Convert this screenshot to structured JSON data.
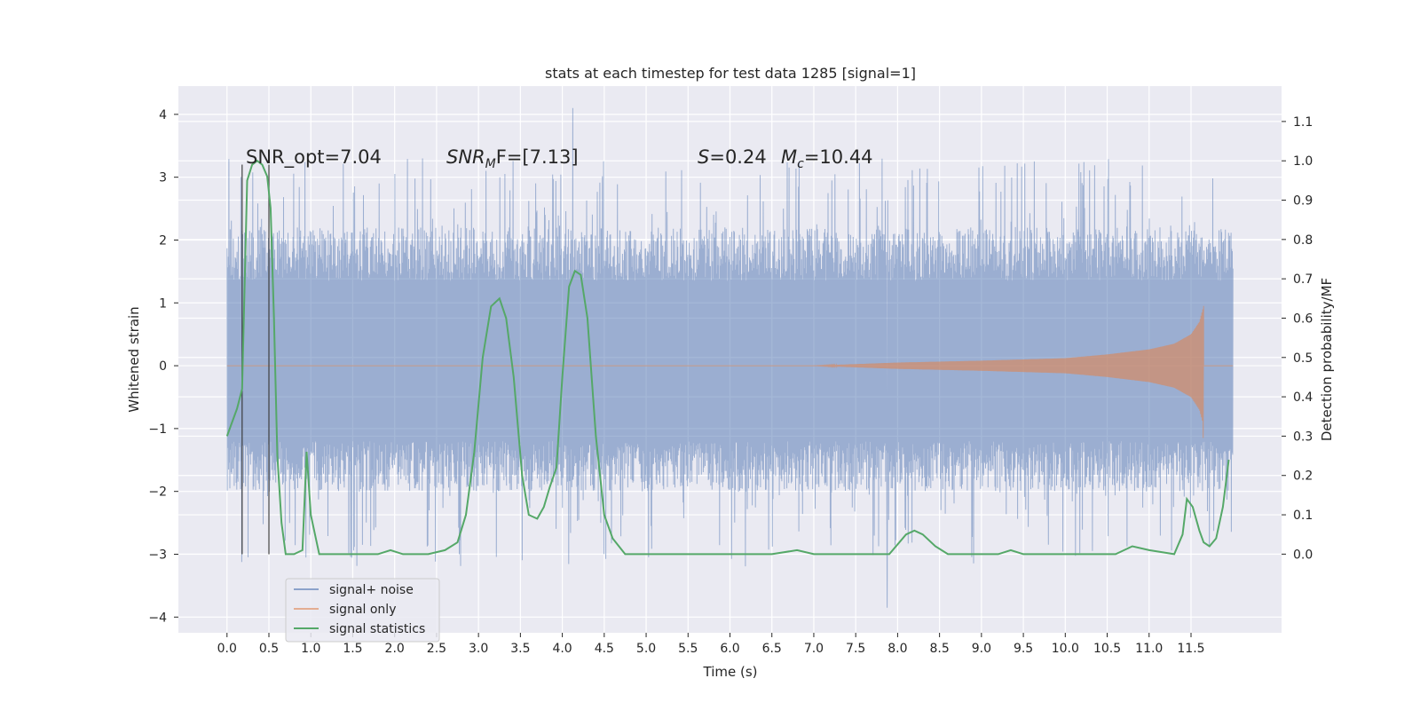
{
  "chart_data": {
    "type": "line",
    "title": "stats at each timestep for test data 1285 [signal=1]",
    "xlabel": "Time (s)",
    "ylabel": "Whitened strain",
    "ylabel_right": "Detection probability/MF",
    "xlim": [
      -0.58,
      12.58
    ],
    "ylim": [
      -4.25,
      4.45
    ],
    "ylim_right": [
      -0.2,
      1.19
    ],
    "x_ticks": [
      0.0,
      0.5,
      1.0,
      1.5,
      2.0,
      2.5,
      3.0,
      3.5,
      4.0,
      4.5,
      5.0,
      5.5,
      6.0,
      6.5,
      7.0,
      7.5,
      8.0,
      8.5,
      9.0,
      9.5,
      10.0,
      10.5,
      11.0,
      11.5
    ],
    "x_tick_labels": [
      "0.0",
      "0.5",
      "1.0",
      "1.5",
      "2.0",
      "2.5",
      "3.0",
      "3.5",
      "4.0",
      "4.5",
      "5.0",
      "5.5",
      "6.0",
      "6.5",
      "7.0",
      "7.5",
      "8.0",
      "8.5",
      "9.0",
      "9.5",
      "10.0",
      "10.5",
      "11.0",
      "11.5"
    ],
    "y_ticks": [
      4,
      3,
      2,
      1,
      0,
      -1,
      -2,
      -3,
      -4
    ],
    "y_tick_labels": [
      "4",
      "3",
      "2",
      "1",
      "0",
      "−1",
      "−2",
      "−3",
      "−4"
    ],
    "y_ticks_right": [
      1.1,
      1.0,
      0.9,
      0.8,
      0.7,
      0.6,
      0.5,
      0.4,
      0.3,
      0.2,
      0.1,
      0.0
    ],
    "y_tick_labels_right": [
      "1.1",
      "1.0",
      "0.9",
      "0.8",
      "0.7",
      "0.6",
      "0.5",
      "0.4",
      "0.3",
      "0.2",
      "0.1",
      "0.0"
    ],
    "grid": true,
    "legend_position": "lower-left",
    "annotations": {
      "snr_opt": "SNR_opt=7.04",
      "snr_mf_sym": "SNR",
      "snr_mf_sub": "M",
      "snr_mf_rest": "F=[7.13]",
      "s_sym": "S",
      "s_rest": "=0.24",
      "mc_sym": "M",
      "mc_sub": "c",
      "mc_rest": "=10.44"
    },
    "vlines": [
      {
        "x": 0.18,
        "y0": -3.0,
        "y1": 3.2
      },
      {
        "x": 0.5,
        "y0": -3.0,
        "y1": 3.2
      }
    ],
    "series": [
      {
        "name": "signal+ noise",
        "color": "#4c72b0",
        "kind": "noise",
        "x_range": [
          0.0,
          12.0
        ],
        "band": [
          -1.2,
          1.35
        ],
        "typical_peak": [
          -2.0,
          2.2
        ],
        "max": 4.1,
        "min": -3.85
      },
      {
        "name": "signal only",
        "color": "#dd8452",
        "kind": "chirp",
        "x_range": [
          7.0,
          11.65
        ],
        "envelope": [
          [
            7.0,
            0.0
          ],
          [
            8.0,
            0.05
          ],
          [
            9.0,
            0.08
          ],
          [
            10.0,
            0.12
          ],
          [
            10.5,
            0.18
          ],
          [
            11.0,
            0.26
          ],
          [
            11.3,
            0.35
          ],
          [
            11.5,
            0.5
          ],
          [
            11.6,
            0.7
          ],
          [
            11.65,
            0.95
          ]
        ],
        "min": -1.15
      },
      {
        "name": "signal statistics",
        "color": "#55a868",
        "kind": "line",
        "axis": "right",
        "x": [
          0.0,
          0.12,
          0.18,
          0.24,
          0.3,
          0.36,
          0.42,
          0.48,
          0.52,
          0.56,
          0.6,
          0.65,
          0.7,
          0.8,
          0.9,
          0.95,
          1.0,
          1.1,
          1.2,
          1.5,
          1.8,
          1.95,
          2.1,
          2.4,
          2.6,
          2.75,
          2.85,
          2.95,
          3.05,
          3.15,
          3.25,
          3.33,
          3.42,
          3.52,
          3.6,
          3.7,
          3.78,
          3.85,
          3.93,
          4.0,
          4.08,
          4.15,
          4.22,
          4.3,
          4.4,
          4.5,
          4.6,
          4.75,
          5.0,
          5.5,
          6.0,
          6.5,
          6.8,
          7.0,
          7.3,
          7.6,
          7.9,
          8.1,
          8.2,
          8.3,
          8.45,
          8.6,
          9.0,
          9.2,
          9.35,
          9.5,
          9.8,
          10.2,
          10.6,
          10.8,
          11.0,
          11.3,
          11.4,
          11.45,
          11.52,
          11.6,
          11.65,
          11.72,
          11.8,
          11.88,
          11.95
        ],
        "y": [
          0.3,
          0.37,
          0.42,
          0.95,
          0.99,
          1.0,
          0.99,
          0.96,
          0.88,
          0.6,
          0.25,
          0.08,
          0.0,
          0.0,
          0.01,
          0.26,
          0.1,
          0.0,
          0.0,
          0.0,
          0.0,
          0.01,
          0.0,
          0.0,
          0.01,
          0.03,
          0.1,
          0.26,
          0.5,
          0.63,
          0.65,
          0.6,
          0.45,
          0.2,
          0.1,
          0.09,
          0.12,
          0.17,
          0.22,
          0.45,
          0.68,
          0.72,
          0.71,
          0.6,
          0.3,
          0.1,
          0.04,
          0.0,
          0.0,
          0.0,
          0.0,
          0.0,
          0.01,
          0.0,
          0.0,
          0.0,
          0.0,
          0.05,
          0.06,
          0.05,
          0.02,
          0.0,
          0.0,
          0.0,
          0.01,
          0.0,
          0.0,
          0.0,
          0.0,
          0.02,
          0.01,
          0.0,
          0.05,
          0.14,
          0.12,
          0.06,
          0.03,
          0.02,
          0.04,
          0.12,
          0.24
        ]
      }
    ]
  }
}
